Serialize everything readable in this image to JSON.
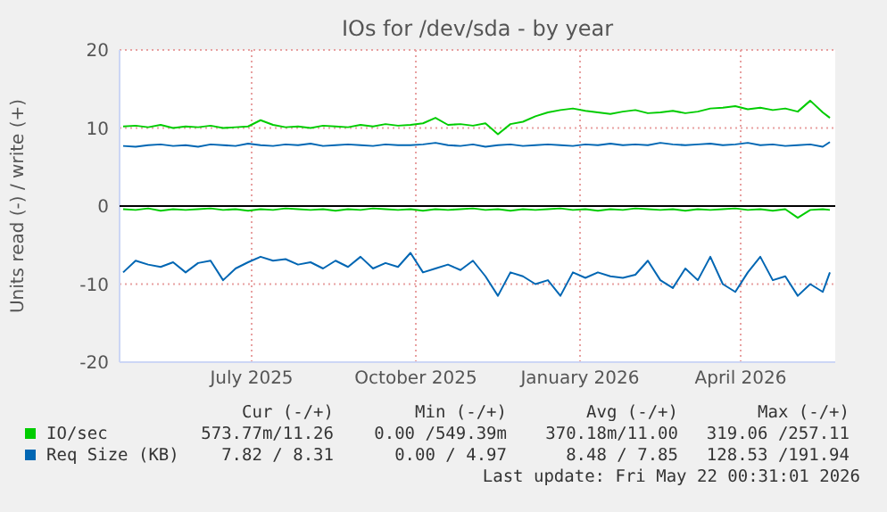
{
  "chart_data": {
    "type": "line",
    "title": "IOs for /dev/sda - by year",
    "ylabel": "Units read (-) / write (+)",
    "x": [
      "2025-04-20",
      "2025-04-27",
      "2025-05-04",
      "2025-05-11",
      "2025-05-18",
      "2025-05-25",
      "2025-06-01",
      "2025-06-08",
      "2025-06-15",
      "2025-06-22",
      "2025-06-29",
      "2025-07-06",
      "2025-07-13",
      "2025-07-20",
      "2025-07-27",
      "2025-08-03",
      "2025-08-10",
      "2025-08-17",
      "2025-08-24",
      "2025-08-31",
      "2025-09-07",
      "2025-09-14",
      "2025-09-21",
      "2025-09-28",
      "2025-10-05",
      "2025-10-12",
      "2025-10-19",
      "2025-10-26",
      "2025-11-02",
      "2025-11-09",
      "2025-11-16",
      "2025-11-23",
      "2025-11-30",
      "2025-12-07",
      "2025-12-14",
      "2025-12-21",
      "2025-12-28",
      "2026-01-04",
      "2026-01-11",
      "2026-01-18",
      "2026-01-25",
      "2026-02-01",
      "2026-02-08",
      "2026-02-15",
      "2026-02-22",
      "2026-03-01",
      "2026-03-08",
      "2026-03-15",
      "2026-03-22",
      "2026-03-29",
      "2026-04-05",
      "2026-04-12",
      "2026-04-19",
      "2026-04-26",
      "2026-05-03",
      "2026-05-10",
      "2026-05-17",
      "2026-05-21"
    ],
    "series": [
      {
        "name": "IO/sec",
        "color": "#00cc00",
        "values": [
          10.2,
          10.3,
          10.1,
          10.4,
          10.0,
          10.2,
          10.1,
          10.3,
          10.0,
          10.1,
          10.2,
          11.0,
          10.4,
          10.1,
          10.2,
          10.0,
          10.3,
          10.2,
          10.1,
          10.4,
          10.2,
          10.5,
          10.3,
          10.4,
          10.6,
          11.3,
          10.4,
          10.5,
          10.3,
          10.6,
          9.2,
          10.5,
          10.8,
          11.5,
          12.0,
          12.3,
          12.5,
          12.2,
          12.0,
          11.8,
          12.1,
          12.3,
          11.9,
          12.0,
          12.2,
          11.9,
          12.1,
          12.5,
          12.6,
          12.8,
          12.4,
          12.6,
          12.3,
          12.5,
          12.1,
          13.5,
          12.0,
          11.3
        ]
      },
      {
        "color": "#00cc00",
        "values": [
          -0.4,
          -0.5,
          -0.3,
          -0.6,
          -0.4,
          -0.5,
          -0.4,
          -0.3,
          -0.5,
          -0.4,
          -0.6,
          -0.4,
          -0.5,
          -0.3,
          -0.4,
          -0.5,
          -0.4,
          -0.6,
          -0.4,
          -0.5,
          -0.3,
          -0.4,
          -0.5,
          -0.4,
          -0.6,
          -0.4,
          -0.5,
          -0.4,
          -0.3,
          -0.5,
          -0.4,
          -0.6,
          -0.4,
          -0.5,
          -0.4,
          -0.3,
          -0.5,
          -0.4,
          -0.6,
          -0.4,
          -0.5,
          -0.3,
          -0.4,
          -0.5,
          -0.4,
          -0.6,
          -0.4,
          -0.5,
          -0.4,
          -0.3,
          -0.5,
          -0.4,
          -0.6,
          -0.4,
          -1.5,
          -0.5,
          -0.4,
          -0.5
        ]
      },
      {
        "name": "Req Size (KB)",
        "color": "#0066b3",
        "values": [
          7.7,
          7.6,
          7.8,
          7.9,
          7.7,
          7.8,
          7.6,
          7.9,
          7.8,
          7.7,
          8.0,
          7.8,
          7.7,
          7.9,
          7.8,
          8.0,
          7.7,
          7.8,
          7.9,
          7.8,
          7.7,
          7.9,
          7.8,
          7.8,
          7.9,
          8.1,
          7.8,
          7.7,
          7.9,
          7.6,
          7.8,
          7.9,
          7.7,
          7.8,
          7.9,
          7.8,
          7.7,
          7.9,
          7.8,
          8.0,
          7.8,
          7.9,
          7.8,
          8.1,
          7.9,
          7.8,
          7.9,
          8.0,
          7.8,
          7.9,
          8.1,
          7.8,
          7.9,
          7.7,
          7.8,
          7.9,
          7.6,
          8.2
        ]
      },
      {
        "color": "#0066b3",
        "values": [
          -8.5,
          -7.0,
          -7.5,
          -7.8,
          -7.2,
          -8.5,
          -7.3,
          -7.0,
          -9.5,
          -8.0,
          -7.2,
          -6.5,
          -7.0,
          -6.8,
          -7.5,
          -7.2,
          -8.0,
          -7.0,
          -7.8,
          -6.5,
          -8.0,
          -7.3,
          -7.8,
          -6.0,
          -8.5,
          -8.0,
          -7.5,
          -8.2,
          -7.0,
          -9.0,
          -11.5,
          -8.5,
          -9.0,
          -10.0,
          -9.5,
          -11.5,
          -8.5,
          -9.2,
          -8.5,
          -9.0,
          -9.2,
          -8.8,
          -7.0,
          -9.5,
          -10.5,
          -8.0,
          -9.5,
          -6.5,
          -10.0,
          -11.0,
          -8.5,
          -6.5,
          -9.5,
          -9.0,
          -11.5,
          -10.0,
          -11.0,
          -8.5
        ]
      }
    ],
    "xlim": [
      "2025-04-18",
      "2026-05-24"
    ],
    "xticks": [
      {
        "value": "2025-07-01",
        "label": "July 2025"
      },
      {
        "value": "2025-10-01",
        "label": "October 2025"
      },
      {
        "value": "2026-01-01",
        "label": "January 2026"
      },
      {
        "value": "2026-04-01",
        "label": "April 2026"
      }
    ],
    "ylim": [
      -20,
      20
    ],
    "yticks": [
      -20,
      -10,
      0,
      10,
      20
    ],
    "grid": true,
    "ref_lines": [
      {
        "axis": "y",
        "value": 0,
        "color": "#000000"
      }
    ],
    "legend": "bottom",
    "annotations": [
      "Cur (-/+)",
      "Min (-/+)",
      "Avg (-/+)",
      "Max (-/+)",
      "573.77m/11.26",
      "0.00 /549.39m",
      "370.18m/11.00",
      "319.06 /257.11",
      "7.82 / 8.31",
      "0.00 / 4.97",
      "8.48 / 7.85",
      "128.53 /191.94",
      "Last update: Fri May 22 00:31:01 2026"
    ]
  }
}
